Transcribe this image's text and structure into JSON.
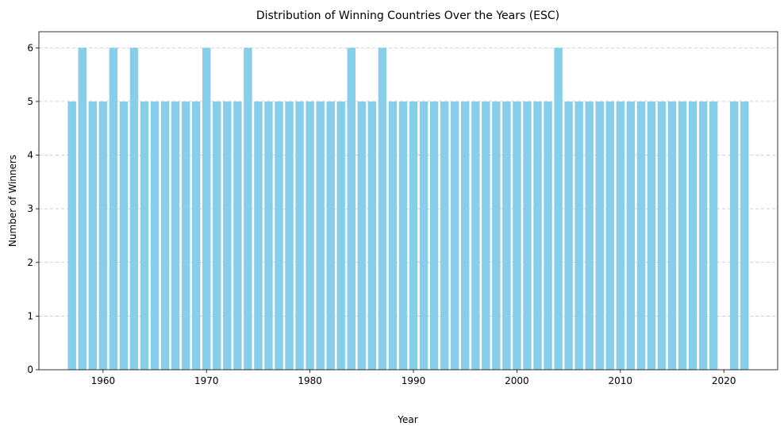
{
  "chart_data": {
    "type": "bar",
    "title": "Distribution of Winning Countries Over the Years (ESC)",
    "xlabel": "Year",
    "ylabel": "Number of Winners",
    "xlim": [
      1953.8,
      2025.2
    ],
    "ylim": [
      0,
      6.3
    ],
    "x_ticks": [
      1960,
      1970,
      1980,
      1990,
      2000,
      2010,
      2020
    ],
    "y_ticks": [
      0,
      1,
      2,
      3,
      4,
      5,
      6
    ],
    "grid": "y, dashed",
    "bar_color": "#87CEEB",
    "categories": [
      1957,
      1958,
      1959,
      1960,
      1961,
      1962,
      1963,
      1964,
      1965,
      1966,
      1967,
      1968,
      1969,
      1970,
      1971,
      1972,
      1973,
      1974,
      1975,
      1976,
      1977,
      1978,
      1979,
      1980,
      1981,
      1982,
      1983,
      1984,
      1985,
      1986,
      1987,
      1988,
      1989,
      1990,
      1991,
      1992,
      1993,
      1994,
      1995,
      1996,
      1997,
      1998,
      1999,
      2000,
      2001,
      2002,
      2003,
      2004,
      2005,
      2006,
      2007,
      2008,
      2009,
      2010,
      2011,
      2012,
      2013,
      2014,
      2015,
      2016,
      2017,
      2018,
      2019,
      2021,
      2022
    ],
    "values": [
      5,
      6,
      5,
      5,
      6,
      5,
      6,
      5,
      5,
      5,
      5,
      5,
      5,
      6,
      5,
      5,
      5,
      6,
      5,
      5,
      5,
      5,
      5,
      5,
      5,
      5,
      5,
      6,
      5,
      5,
      6,
      5,
      5,
      5,
      5,
      5,
      5,
      5,
      5,
      5,
      5,
      5,
      5,
      5,
      5,
      5,
      5,
      6,
      5,
      5,
      5,
      5,
      5,
      5,
      5,
      5,
      5,
      5,
      5,
      5,
      5,
      5,
      5,
      5,
      5
    ]
  }
}
